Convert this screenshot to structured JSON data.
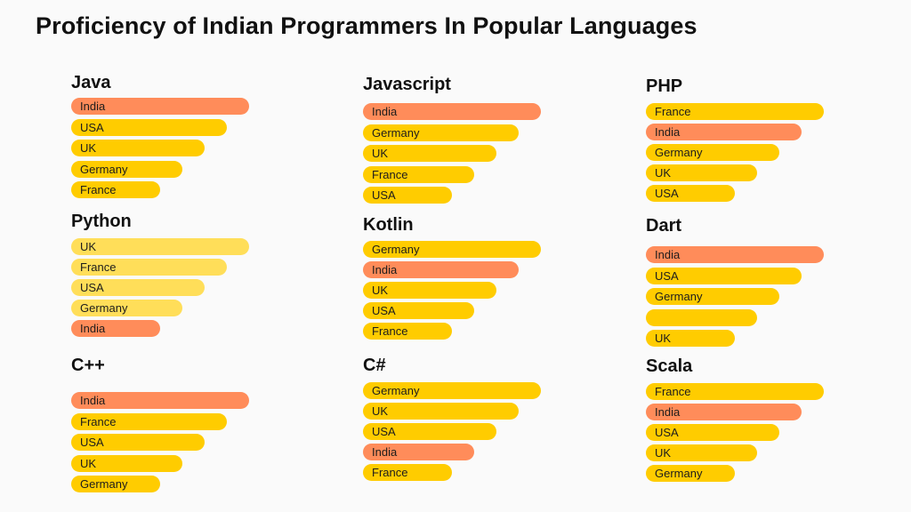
{
  "title": "Proficiency of Indian Programmers In Popular Languages",
  "colors": {
    "highlight": "#FF8C5A",
    "default": "#FFCC00",
    "python_default": "#FFDE59"
  },
  "chart_data": [
    {
      "type": "bar",
      "orientation": "horizontal",
      "title": "Java",
      "categories": [
        "India",
        "USA",
        "UK",
        "Germany",
        "France"
      ],
      "values": [
        5,
        4,
        3,
        2,
        1
      ],
      "highlight": "India"
    },
    {
      "type": "bar",
      "orientation": "horizontal",
      "title": "Javascript",
      "categories": [
        "India",
        "Germany",
        "UK",
        "France",
        "USA"
      ],
      "values": [
        5,
        4,
        3,
        2,
        1
      ],
      "highlight": "India"
    },
    {
      "type": "bar",
      "orientation": "horizontal",
      "title": "PHP",
      "categories": [
        "France",
        "India",
        "Germany",
        "UK",
        "USA"
      ],
      "values": [
        5,
        4,
        3,
        2,
        1
      ],
      "highlight": "India"
    },
    {
      "type": "bar",
      "orientation": "horizontal",
      "title": "Python",
      "categories": [
        "UK",
        "France",
        "USA",
        "Germany",
        "India"
      ],
      "values": [
        5,
        4,
        3,
        2,
        1
      ],
      "highlight": "India",
      "palette": "python_default"
    },
    {
      "type": "bar",
      "orientation": "horizontal",
      "title": "Kotlin",
      "categories": [
        "Germany",
        "India",
        "UK",
        "USA",
        "France"
      ],
      "values": [
        5,
        4,
        3,
        2,
        1
      ],
      "highlight": "India"
    },
    {
      "type": "bar",
      "orientation": "horizontal",
      "title": "Dart",
      "categories": [
        "India",
        "USA",
        "Germany",
        "",
        "UK"
      ],
      "values": [
        5,
        4,
        3,
        2,
        1
      ],
      "highlight": "India"
    },
    {
      "type": "bar",
      "orientation": "horizontal",
      "title": "C++",
      "categories": [
        "India",
        "France",
        "USA",
        "UK",
        "Germany"
      ],
      "values": [
        5,
        4,
        3,
        2,
        1
      ],
      "highlight": "India"
    },
    {
      "type": "bar",
      "orientation": "horizontal",
      "title": "C#",
      "categories": [
        "Germany",
        "UK",
        "USA",
        "India",
        "France"
      ],
      "values": [
        5,
        4,
        3,
        2,
        1
      ],
      "highlight": "India"
    },
    {
      "type": "bar",
      "orientation": "horizontal",
      "title": "Scala",
      "categories": [
        "France",
        "India",
        "USA",
        "UK",
        "Germany"
      ],
      "values": [
        5,
        4,
        3,
        2,
        1
      ],
      "highlight": "India"
    }
  ]
}
